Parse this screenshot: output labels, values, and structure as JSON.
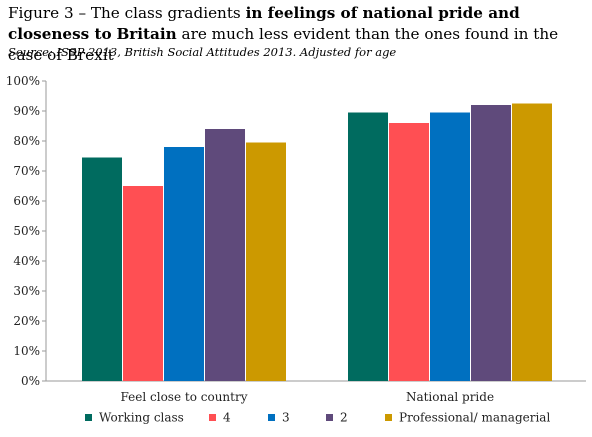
{
  "figure": {
    "title_prefix": "Figure 3 – The class gradients ",
    "title_bold1": "in feelings of national pride and closeness to",
    "title_bold2": "Britain",
    "title_suffix": " are much less evident than the ones found in the case of Brexit",
    "source": "Source: ISSP 2013, British Social Attitudes 2013. Adjusted for age"
  },
  "chart_data": {
    "type": "bar",
    "categories": [
      "Feel close to country",
      "National pride"
    ],
    "series": [
      {
        "name": "Working class",
        "color": "#006b5f",
        "values": [
          74.5,
          89.5
        ]
      },
      {
        "name": "4",
        "color": "#ff4f53",
        "values": [
          65,
          86
        ]
      },
      {
        "name": "3",
        "color": "#0070c0",
        "values": [
          78,
          89.5
        ]
      },
      {
        "name": "2",
        "color": "#5f4a7b",
        "values": [
          84,
          92
        ]
      },
      {
        "name": "Professional/ managerial",
        "color": "#cc9900",
        "values": [
          79.5,
          92.5
        ]
      }
    ],
    "ylim": [
      0,
      100
    ],
    "yticks": [
      "0%",
      "10%",
      "20%",
      "30%",
      "40%",
      "50%",
      "60%",
      "70%",
      "80%",
      "90%",
      "100%"
    ],
    "grid": false,
    "legend_position": "bottom"
  }
}
